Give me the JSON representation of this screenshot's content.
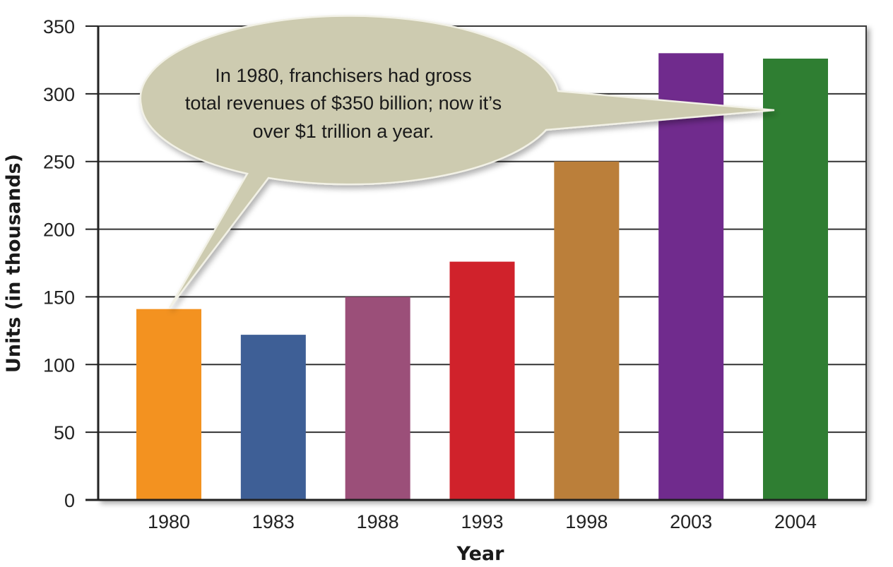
{
  "chart_data": {
    "type": "bar",
    "categories": [
      "1980",
      "1983",
      "1988",
      "1993",
      "1998",
      "2003",
      "2004"
    ],
    "values": [
      141,
      122,
      150,
      176,
      250,
      330,
      326
    ],
    "colors": [
      "#f39220",
      "#3e5f96",
      "#9b4f79",
      "#d0222b",
      "#bb7f3a",
      "#702b8d",
      "#2f7e32"
    ],
    "xlabel": "Year",
    "ylabel": "Units (in thousands)",
    "ylim": [
      0,
      350
    ],
    "yticks": [
      0,
      50,
      100,
      150,
      200,
      250,
      300,
      350
    ],
    "grid": true,
    "annotation": {
      "lines": [
        "In 1980, franchisers had gross",
        "total revenues of $350 billion; now it’s",
        "over $1 trillion a year."
      ],
      "fill": "#cdcbb0"
    }
  }
}
